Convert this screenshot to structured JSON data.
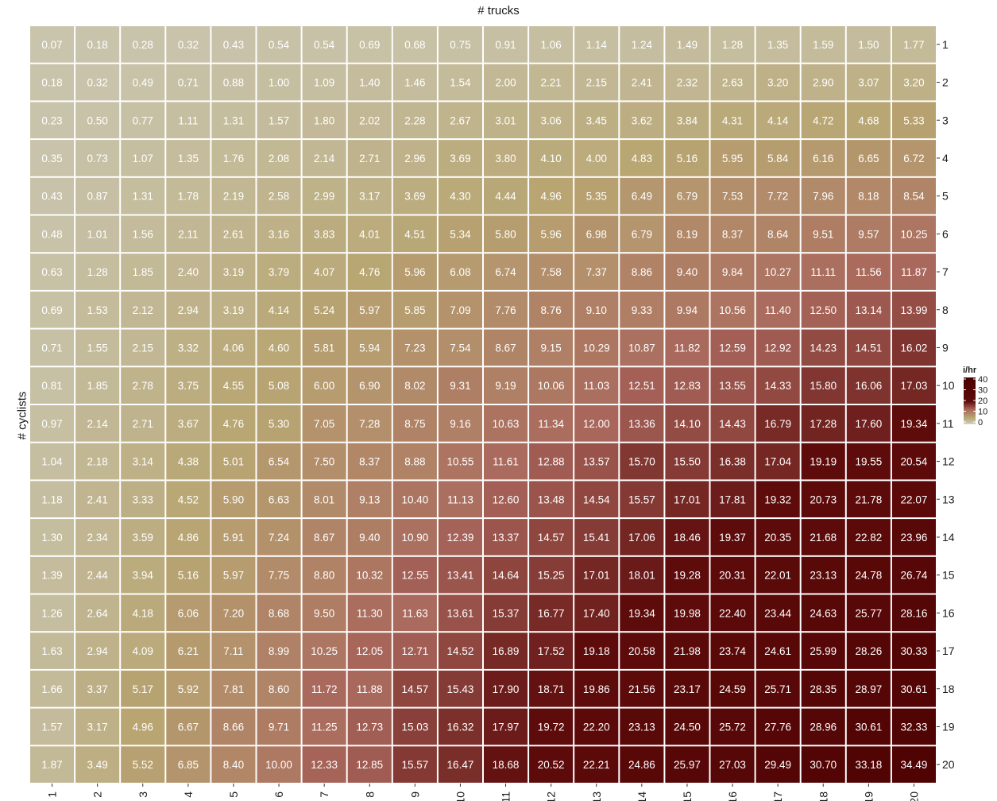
{
  "chart_data": {
    "type": "heatmap",
    "xlabel": "# trucks",
    "ylabel": "# cyclists",
    "x": [
      "1",
      "2",
      "3",
      "4",
      "5",
      "6",
      "7",
      "8",
      "9",
      "10",
      "11",
      "12",
      "13",
      "14",
      "15",
      "16",
      "17",
      "18",
      "19",
      "20"
    ],
    "y": [
      "1",
      "2",
      "3",
      "4",
      "5",
      "6",
      "7",
      "8",
      "9",
      "10",
      "11",
      "12",
      "13",
      "14",
      "15",
      "16",
      "17",
      "18",
      "19",
      "20"
    ],
    "values": [
      [
        0.07,
        0.18,
        0.28,
        0.32,
        0.43,
        0.54,
        0.54,
        0.69,
        0.68,
        0.75,
        0.91,
        1.06,
        1.14,
        1.24,
        1.49,
        1.28,
        1.35,
        1.59,
        1.5,
        1.77
      ],
      [
        0.18,
        0.32,
        0.49,
        0.71,
        0.88,
        1.0,
        1.09,
        1.4,
        1.46,
        1.54,
        2.0,
        2.21,
        2.15,
        2.41,
        2.32,
        2.63,
        3.2,
        2.9,
        3.07,
        3.2
      ],
      [
        0.23,
        0.5,
        0.77,
        1.11,
        1.31,
        1.57,
        1.8,
        2.02,
        2.28,
        2.67,
        3.01,
        3.06,
        3.45,
        3.62,
        3.84,
        4.31,
        4.14,
        4.72,
        4.68,
        5.33
      ],
      [
        0.35,
        0.73,
        1.07,
        1.35,
        1.76,
        2.08,
        2.14,
        2.71,
        2.96,
        3.69,
        3.8,
        4.1,
        4.0,
        4.83,
        5.16,
        5.95,
        5.84,
        6.16,
        6.65,
        6.72
      ],
      [
        0.43,
        0.87,
        1.31,
        1.78,
        2.19,
        2.58,
        2.99,
        3.17,
        3.69,
        4.3,
        4.44,
        4.96,
        5.35,
        6.49,
        6.79,
        7.53,
        7.72,
        7.96,
        8.18,
        8.54
      ],
      [
        0.48,
        1.01,
        1.56,
        2.11,
        2.61,
        3.16,
        3.83,
        4.01,
        4.51,
        5.34,
        5.8,
        5.96,
        6.98,
        6.79,
        8.19,
        8.37,
        8.64,
        9.51,
        9.57,
        10.25
      ],
      [
        0.63,
        1.28,
        1.85,
        2.4,
        3.19,
        3.79,
        4.07,
        4.76,
        5.96,
        6.08,
        6.74,
        7.58,
        7.37,
        8.86,
        9.4,
        9.84,
        10.27,
        11.11,
        11.56,
        11.87
      ],
      [
        0.69,
        1.53,
        2.12,
        2.94,
        3.19,
        4.14,
        5.24,
        5.97,
        5.85,
        7.09,
        7.76,
        8.76,
        9.1,
        9.33,
        9.94,
        10.56,
        11.4,
        12.5,
        13.14,
        13.99
      ],
      [
        0.71,
        1.55,
        2.15,
        3.32,
        4.06,
        4.6,
        5.81,
        5.94,
        7.23,
        7.54,
        8.67,
        9.15,
        10.29,
        10.87,
        11.82,
        12.59,
        12.92,
        14.23,
        14.51,
        16.02
      ],
      [
        0.81,
        1.85,
        2.78,
        3.75,
        4.55,
        5.08,
        6.0,
        6.9,
        8.02,
        9.31,
        9.19,
        10.06,
        11.03,
        12.51,
        12.83,
        13.55,
        14.33,
        15.8,
        16.06,
        17.03
      ],
      [
        0.97,
        2.14,
        2.71,
        3.67,
        4.76,
        5.3,
        7.05,
        7.28,
        8.75,
        9.16,
        10.63,
        11.34,
        12.0,
        13.36,
        14.1,
        14.43,
        16.79,
        17.28,
        17.6,
        19.34
      ],
      [
        1.04,
        2.18,
        3.14,
        4.38,
        5.01,
        6.54,
        7.5,
        8.37,
        8.88,
        10.55,
        11.61,
        12.88,
        13.57,
        15.7,
        15.5,
        16.38,
        17.04,
        19.19,
        19.55,
        20.54
      ],
      [
        1.18,
        2.41,
        3.33,
        4.52,
        5.9,
        6.63,
        8.01,
        9.13,
        10.4,
        11.13,
        12.6,
        13.48,
        14.54,
        15.57,
        17.01,
        17.81,
        19.32,
        20.73,
        21.78,
        22.07
      ],
      [
        1.3,
        2.34,
        3.59,
        4.86,
        5.91,
        7.24,
        8.67,
        9.4,
        10.9,
        12.39,
        13.37,
        14.57,
        15.41,
        17.06,
        18.46,
        19.37,
        20.35,
        21.68,
        22.82,
        23.96
      ],
      [
        1.39,
        2.44,
        3.94,
        5.16,
        5.97,
        7.75,
        8.8,
        10.32,
        12.55,
        13.41,
        14.64,
        15.25,
        17.01,
        18.01,
        19.28,
        20.31,
        22.01,
        23.13,
        24.78,
        26.74
      ],
      [
        1.26,
        2.64,
        4.18,
        6.06,
        7.2,
        8.68,
        9.5,
        11.3,
        11.63,
        13.61,
        15.37,
        16.77,
        17.4,
        19.34,
        19.98,
        22.4,
        23.44,
        24.63,
        25.77,
        28.16
      ],
      [
        1.63,
        2.94,
        4.09,
        6.21,
        7.11,
        8.99,
        10.25,
        12.05,
        12.71,
        14.52,
        16.89,
        17.52,
        19.18,
        20.58,
        21.98,
        23.74,
        24.61,
        25.99,
        28.26,
        30.33
      ],
      [
        1.66,
        3.37,
        5.17,
        5.92,
        7.81,
        8.6,
        11.72,
        11.88,
        14.57,
        15.43,
        17.9,
        18.71,
        19.86,
        21.56,
        23.17,
        24.59,
        25.71,
        28.35,
        28.97,
        30.61
      ],
      [
        1.57,
        3.17,
        4.96,
        6.67,
        8.66,
        9.71,
        11.25,
        12.73,
        15.03,
        16.32,
        17.97,
        19.72,
        22.2,
        23.13,
        24.5,
        25.72,
        27.76,
        28.96,
        30.61,
        32.33
      ],
      [
        1.87,
        3.49,
        5.52,
        6.85,
        8.4,
        10.0,
        12.33,
        12.85,
        15.57,
        16.47,
        18.68,
        20.52,
        22.21,
        24.86,
        25.97,
        27.03,
        29.49,
        30.7,
        33.18,
        34.49
      ]
    ],
    "value_format": "2 decimals",
    "legend": {
      "title": "i/hr",
      "ticks": [
        "40",
        "30",
        "20",
        "10",
        "0"
      ],
      "placement": "right",
      "range": [
        0,
        40
      ]
    },
    "color_scale": [
      "#c9c5ae",
      "#b8a673",
      "#a9675c",
      "#5e0b0b",
      "#4a0000"
    ],
    "x_axis_position": "top-title, bottom-ticks",
    "y_axis_position": "left-title, right-ticks",
    "grid": false
  }
}
